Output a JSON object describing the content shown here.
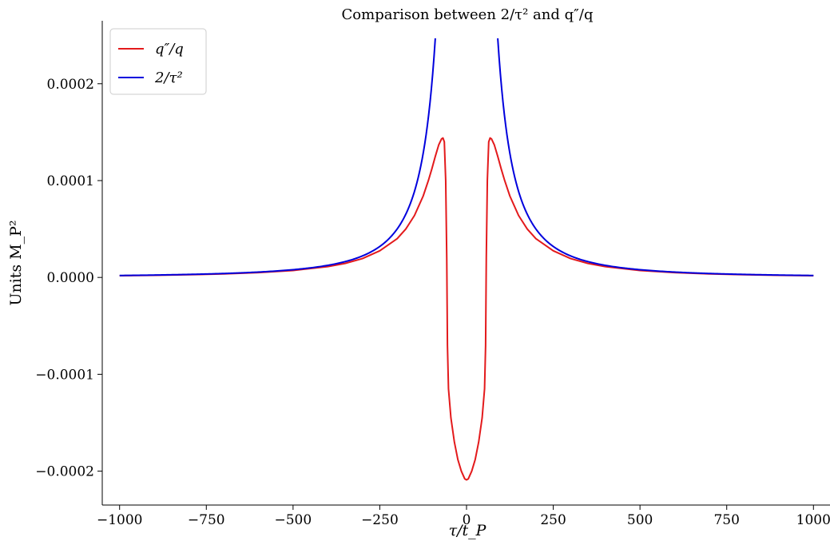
{
  "chart_data": {
    "type": "line",
    "title": "Comparison between 2/τ² and q″/q",
    "xlabel": "τ/t_P",
    "ylabel": "Units M_P²",
    "xlim": [
      -1050,
      1050
    ],
    "ylim": [
      -0.000235,
      0.000265
    ],
    "xticks": [
      -1000,
      -750,
      -500,
      -250,
      0,
      250,
      500,
      750,
      1000
    ],
    "xtick_labels": [
      "−1000",
      "−750",
      "−500",
      "−250",
      "0",
      "250",
      "500",
      "750",
      "1000"
    ],
    "yticks": [
      -0.0002,
      -0.0001,
      0.0,
      0.0001,
      0.0002
    ],
    "ytick_labels": [
      "−0.0002",
      "−0.0001",
      "0.0000",
      "0.0001",
      "0.0002"
    ],
    "grid": false,
    "legend_position": "top-left",
    "series": [
      {
        "name": "q″/q",
        "color": "#e31a1c",
        "points": [
          [
            -1000,
            1.8e-06
          ],
          [
            -900,
            2.2e-06
          ],
          [
            -800,
            2.8e-06
          ],
          [
            -700,
            3.7e-06
          ],
          [
            -600,
            5e-06
          ],
          [
            -500,
            7.2e-06
          ],
          [
            -400,
            1.12e-05
          ],
          [
            -350,
            1.45e-05
          ],
          [
            -300,
            1.95e-05
          ],
          [
            -250,
            2.75e-05
          ],
          [
            -200,
            4e-05
          ],
          [
            -175,
            5e-05
          ],
          [
            -150,
            6.4e-05
          ],
          [
            -125,
            8.4e-05
          ],
          [
            -110,
            0.0001
          ],
          [
            -100,
            0.000112
          ],
          [
            -90,
            0.000125
          ],
          [
            -80,
            0.000137
          ],
          [
            -72,
            0.000143
          ],
          [
            -68,
            0.000144
          ],
          [
            -64,
            0.00014
          ],
          [
            -60,
            0.0001
          ],
          [
            -57,
            2e-05
          ],
          [
            -55,
            -7e-05
          ],
          [
            -52,
            -0.000115
          ],
          [
            -45,
            -0.000145
          ],
          [
            -35,
            -0.00017
          ],
          [
            -25,
            -0.000188
          ],
          [
            -15,
            -0.0002
          ],
          [
            -5,
            -0.000208
          ],
          [
            0,
            -0.000209
          ],
          [
            5,
            -0.000208
          ],
          [
            15,
            -0.0002
          ],
          [
            25,
            -0.000188
          ],
          [
            35,
            -0.00017
          ],
          [
            45,
            -0.000145
          ],
          [
            52,
            -0.000115
          ],
          [
            55,
            -7e-05
          ],
          [
            57,
            2e-05
          ],
          [
            60,
            0.0001
          ],
          [
            64,
            0.00014
          ],
          [
            68,
            0.000144
          ],
          [
            72,
            0.000143
          ],
          [
            80,
            0.000137
          ],
          [
            90,
            0.000125
          ],
          [
            100,
            0.000112
          ],
          [
            110,
            0.0001
          ],
          [
            125,
            8.4e-05
          ],
          [
            150,
            6.4e-05
          ],
          [
            175,
            5e-05
          ],
          [
            200,
            4e-05
          ],
          [
            250,
            2.75e-05
          ],
          [
            300,
            1.95e-05
          ],
          [
            350,
            1.45e-05
          ],
          [
            400,
            1.12e-05
          ],
          [
            500,
            7.2e-06
          ],
          [
            600,
            5e-06
          ],
          [
            700,
            3.7e-06
          ],
          [
            800,
            2.8e-06
          ],
          [
            900,
            2.2e-06
          ],
          [
            1000,
            1.8e-06
          ]
        ]
      },
      {
        "name": "2/τ²",
        "color": "#0000dd",
        "function": "2/x^2",
        "segments": [
          [
            -1000,
            -90
          ],
          [
            90,
            1000
          ]
        ]
      }
    ]
  }
}
